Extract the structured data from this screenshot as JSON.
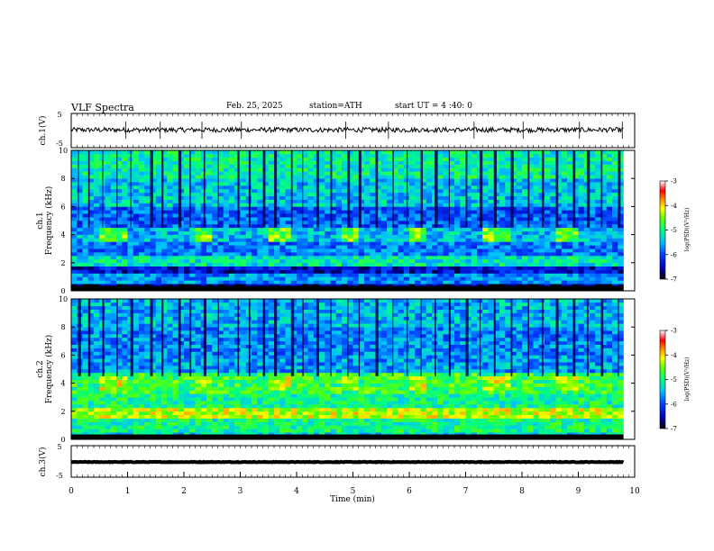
{
  "header": {
    "title": "VLF Spectra",
    "date": "Feb. 25, 2025",
    "station": "station=ATH",
    "start": "start UT = 4 :40: 0"
  },
  "chart_data": [
    {
      "type": "line",
      "panel": "ch1-waveform",
      "ylabel": "ch.1(V)",
      "ylim": [
        -5,
        5
      ],
      "y_ticks": [
        "5",
        "-5"
      ],
      "xlim": [
        0,
        10
      ],
      "series": [
        {
          "approx_level_V": 0.2,
          "noise_amplitude_V": 0.7
        }
      ],
      "spikes_min": [
        0.97,
        1.58,
        2.32,
        3.02,
        4.87,
        5.63,
        7.15,
        8.02,
        9.02,
        9.78
      ]
    },
    {
      "type": "heatmap",
      "panel": "ch1-spectrogram",
      "ylabel_line1": "ch.1",
      "ylabel_line2": "Frequency (kHz)",
      "ylim": [
        0,
        10
      ],
      "y_ticks": [
        "0",
        "2",
        "4",
        "6",
        "8",
        "10"
      ],
      "xlim": [
        0,
        9.8
      ],
      "colorbar": {
        "label": "log(PSD)(V²/Hz)",
        "range": [
          -7,
          -3
        ],
        "ticks": [
          "-3",
          "-4",
          "-5",
          "-6",
          "-7"
        ]
      },
      "bands": [
        {
          "f_low_khz": 0.0,
          "f_high_khz": 0.6,
          "log_psd": -6.6
        },
        {
          "f_low_khz": 0.6,
          "f_high_khz": 1.2,
          "log_psd": -5.7
        },
        {
          "f_low_khz": 1.2,
          "f_high_khz": 1.8,
          "log_psd": -6.4
        },
        {
          "f_low_khz": 1.8,
          "f_high_khz": 2.5,
          "log_psd": -5.2
        },
        {
          "f_low_khz": 2.5,
          "f_high_khz": 3.6,
          "log_psd": -5.8
        },
        {
          "f_low_khz": 3.6,
          "f_high_khz": 4.5,
          "log_psd": -5.5
        },
        {
          "f_low_khz": 4.5,
          "f_high_khz": 6.0,
          "log_psd": -5.9
        },
        {
          "f_low_khz": 6.0,
          "f_high_khz": 8.0,
          "log_psd": -5.4
        },
        {
          "f_low_khz": 8.0,
          "f_high_khz": 10.0,
          "log_psd": -5.1
        }
      ],
      "bursts": [
        {
          "t_start_min": 0.55,
          "t_end_min": 1.0,
          "f_low_khz": 3.4,
          "f_high_khz": 4.4,
          "log_psd": -4.6
        },
        {
          "t_start_min": 2.25,
          "t_end_min": 2.55,
          "f_low_khz": 3.4,
          "f_high_khz": 4.4,
          "log_psd": -4.6
        },
        {
          "t_start_min": 3.5,
          "t_end_min": 3.85,
          "f_low_khz": 3.4,
          "f_high_khz": 4.4,
          "log_psd": -4.6
        },
        {
          "t_start_min": 4.8,
          "t_end_min": 5.1,
          "f_low_khz": 3.4,
          "f_high_khz": 4.4,
          "log_psd": -4.6
        },
        {
          "t_start_min": 6.05,
          "t_end_min": 6.35,
          "f_low_khz": 3.4,
          "f_high_khz": 4.4,
          "log_psd": -4.6
        },
        {
          "t_start_min": 7.35,
          "t_end_min": 7.85,
          "f_low_khz": 3.4,
          "f_high_khz": 4.4,
          "log_psd": -4.6
        },
        {
          "t_start_min": 8.6,
          "t_end_min": 9.0,
          "f_low_khz": 3.4,
          "f_high_khz": 4.4,
          "log_psd": -4.6
        }
      ],
      "sferics_min": [
        0.12,
        0.3,
        0.55,
        0.8,
        1.05,
        1.4,
        1.6,
        1.9,
        2.1,
        2.35,
        2.6,
        2.95,
        3.15,
        3.4,
        3.6,
        3.9,
        4.1,
        4.35,
        4.6,
        4.9,
        5.1,
        5.4,
        5.7,
        5.95,
        6.2,
        6.45,
        6.7,
        7.0,
        7.25,
        7.5,
        7.8,
        8.1,
        8.35,
        8.6,
        8.9,
        9.15,
        9.4,
        9.7
      ]
    },
    {
      "type": "heatmap",
      "panel": "ch2-spectrogram",
      "ylabel_line1": "ch.2",
      "ylabel_line2": "Frequency (kHz)",
      "ylim": [
        0,
        10
      ],
      "y_ticks": [
        "0",
        "2",
        "4",
        "6",
        "8",
        "10"
      ],
      "xlim": [
        0,
        9.8
      ],
      "colorbar": {
        "label": "log(PSD)(V²/Hz)",
        "range": [
          -7,
          -3
        ],
        "ticks": [
          "-3",
          "-4",
          "-5",
          "-6",
          "-7"
        ]
      },
      "bands": [
        {
          "f_low_khz": 0.0,
          "f_high_khz": 0.5,
          "log_psd": -5.3
        },
        {
          "f_low_khz": 0.5,
          "f_high_khz": 1.5,
          "log_psd": -5.0
        },
        {
          "f_low_khz": 1.5,
          "f_high_khz": 2.3,
          "log_psd": -4.3
        },
        {
          "f_low_khz": 2.3,
          "f_high_khz": 3.3,
          "log_psd": -5.0
        },
        {
          "f_low_khz": 3.3,
          "f_high_khz": 4.7,
          "log_psd": -4.8
        },
        {
          "f_low_khz": 4.7,
          "f_high_khz": 6.0,
          "log_psd": -5.6
        },
        {
          "f_low_khz": 6.0,
          "f_high_khz": 8.0,
          "log_psd": -5.7
        },
        {
          "f_low_khz": 8.0,
          "f_high_khz": 10.0,
          "log_psd": -5.5
        }
      ],
      "bursts": [
        {
          "t_start_min": 0.55,
          "t_end_min": 1.0,
          "f_low_khz": 3.4,
          "f_high_khz": 4.5,
          "log_psd": -4.3
        },
        {
          "t_start_min": 2.25,
          "t_end_min": 2.55,
          "f_low_khz": 3.4,
          "f_high_khz": 4.5,
          "log_psd": -4.3
        },
        {
          "t_start_min": 3.5,
          "t_end_min": 3.85,
          "f_low_khz": 3.4,
          "f_high_khz": 4.5,
          "log_psd": -4.3
        },
        {
          "t_start_min": 4.8,
          "t_end_min": 5.1,
          "f_low_khz": 3.4,
          "f_high_khz": 4.5,
          "log_psd": -4.3
        },
        {
          "t_start_min": 6.05,
          "t_end_min": 6.35,
          "f_low_khz": 3.4,
          "f_high_khz": 4.5,
          "log_psd": -4.3
        },
        {
          "t_start_min": 7.35,
          "t_end_min": 7.85,
          "f_low_khz": 3.4,
          "f_high_khz": 4.5,
          "log_psd": -4.3
        },
        {
          "t_start_min": 8.6,
          "t_end_min": 9.0,
          "f_low_khz": 3.4,
          "f_high_khz": 4.5,
          "log_psd": -4.3
        }
      ],
      "sferics_min": [
        0.12,
        0.3,
        0.55,
        0.8,
        1.05,
        1.4,
        1.6,
        1.9,
        2.1,
        2.35,
        2.6,
        2.95,
        3.15,
        3.4,
        3.6,
        3.9,
        4.1,
        4.35,
        4.6,
        4.9,
        5.1,
        5.4,
        5.7,
        5.95,
        6.2,
        6.45,
        6.7,
        7.0,
        7.25,
        7.5,
        7.8,
        8.1,
        8.35,
        8.6,
        8.9,
        9.15,
        9.4,
        9.7
      ]
    },
    {
      "type": "line",
      "panel": "ch3-waveform",
      "ylabel": "ch.3(V)",
      "ylim": [
        -5,
        5
      ],
      "y_ticks": [
        "5",
        "-5"
      ],
      "xlim": [
        0,
        10
      ],
      "xlabel": "Time (min)",
      "x_ticks": [
        "0",
        "1",
        "2",
        "3",
        "4",
        "5",
        "6",
        "7",
        "8",
        "9",
        "10"
      ],
      "series": [
        {
          "approx_level_V": -0.2,
          "noise_amplitude_V": 0.1
        }
      ]
    }
  ]
}
